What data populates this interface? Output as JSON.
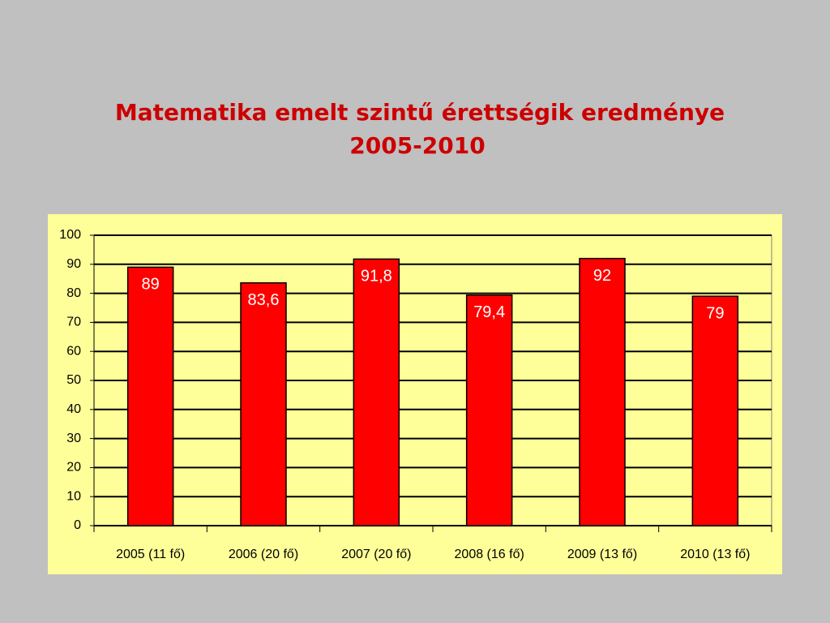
{
  "chart_data": {
    "type": "bar",
    "title": "Matematika emelt szintű érettségik eredménye",
    "subtitle": "2005-2010",
    "categories": [
      "2005 (11 fő)",
      "2006 (20 fő)",
      "2007 (20 fő)",
      "2008 (16 fő)",
      "2009 (13 fő)",
      "2010 (13 fő)"
    ],
    "values": [
      89,
      83.6,
      91.8,
      79.4,
      92,
      79
    ],
    "value_labels": [
      "89",
      "83,6",
      "91,8",
      "79,4",
      "92",
      "79"
    ],
    "color": "#ff0000",
    "ylim": [
      0,
      100
    ],
    "yticks": [
      0,
      10,
      20,
      30,
      40,
      50,
      60,
      70,
      80,
      90,
      100
    ],
    "grid": true
  }
}
